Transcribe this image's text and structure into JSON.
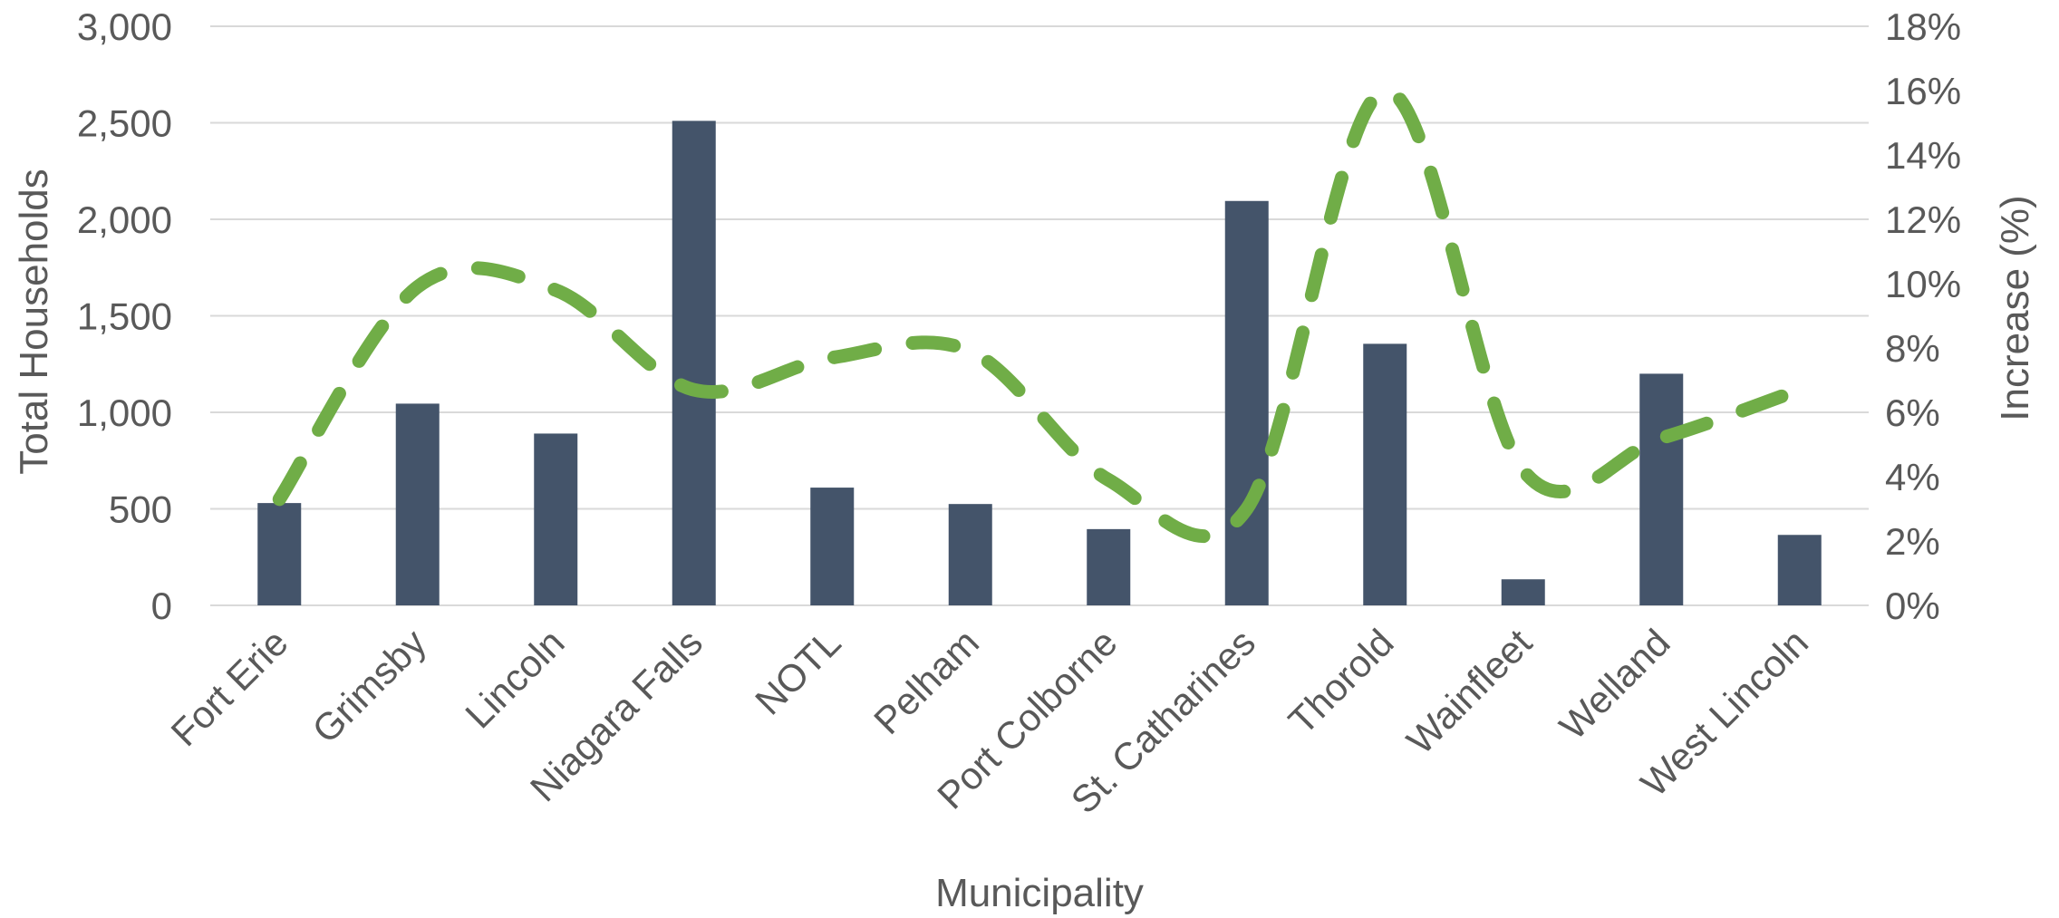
{
  "chart_data": {
    "type": "bar",
    "categories": [
      "Fort Erie",
      "Grimsby",
      "Lincoln",
      "Niagara Falls",
      "NOTL",
      "Pelham",
      "Port Colborne",
      "St. Catharines",
      "Thorold",
      "Wainfleet",
      "Welland",
      "West Lincoln"
    ],
    "series": [
      {
        "type": "bar",
        "axis": "left",
        "values": [
          530,
          1045,
          890,
          2510,
          610,
          525,
          395,
          2095,
          1355,
          135,
          1200,
          365
        ]
      },
      {
        "type": "line",
        "axis": "right",
        "line_style": "dashed-smooth",
        "values": [
          3.3,
          9.9,
          9.8,
          6.7,
          7.7,
          7.9,
          3.9,
          3.0,
          16.0,
          4.2,
          5.2,
          6.7
        ]
      }
    ],
    "xlabel": "Municipality",
    "ylabel": "Total Households",
    "y2label": "Increase (%)",
    "ylim": [
      0,
      3000
    ],
    "y2lim": [
      0,
      18
    ],
    "yticks": [
      "0",
      "500",
      "1,000",
      "1,500",
      "2,000",
      "2,500",
      "3,000"
    ],
    "y2ticks": [
      "0%",
      "2%",
      "4%",
      "6%",
      "8%",
      "10%",
      "12%",
      "14%",
      "16%",
      "18%"
    ],
    "grid": true,
    "legend": "none",
    "colors": {
      "bar": "#44546a",
      "line": "#70ad47",
      "grid": "#d9d9d9",
      "text": "#595959"
    }
  }
}
